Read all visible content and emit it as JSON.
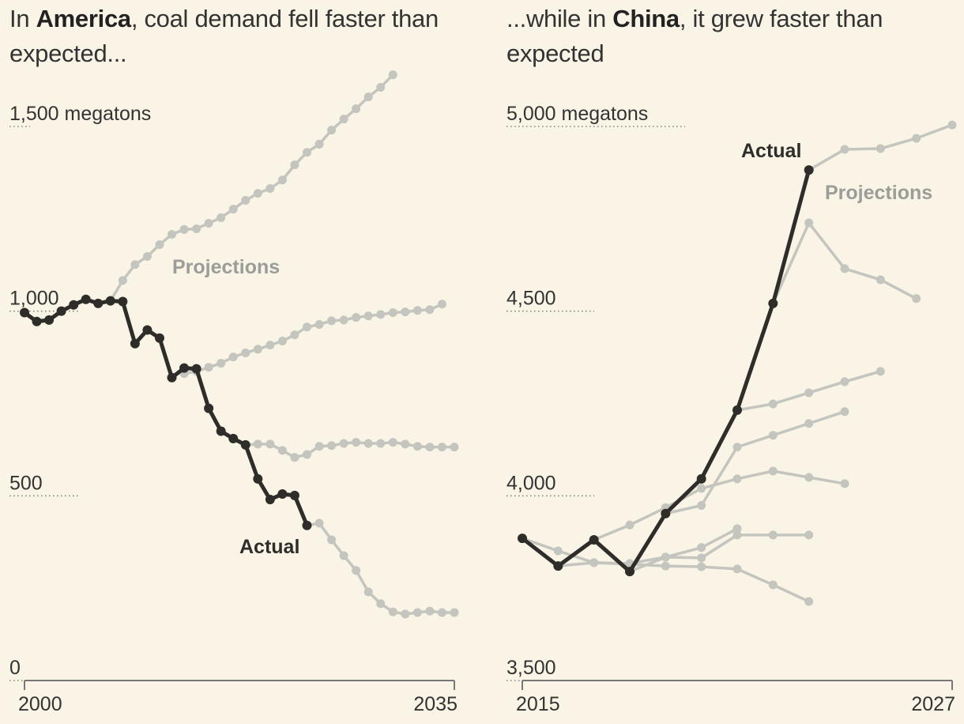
{
  "chart_data": [
    {
      "type": "line",
      "title": {
        "pre": "In ",
        "bold": "America",
        "post": ", coal demand fell faster than expected..."
      },
      "unit": "megatons",
      "ylim": [
        0,
        1500
      ],
      "yticks": [
        {
          "value": 0,
          "label": "0"
        },
        {
          "value": 500,
          "label": "500"
        },
        {
          "value": 1000,
          "label": "1,000"
        },
        {
          "value": 1500,
          "label": "1,500 megatons"
        }
      ],
      "xlim": [
        2000,
        2035
      ],
      "xticks": [
        {
          "value": 2000,
          "label": "2000"
        },
        {
          "value": 2035,
          "label": "2035"
        }
      ],
      "annotations": {
        "actual": "Actual",
        "projections": "Projections"
      },
      "actual": {
        "name": "Actual",
        "x": [
          2000,
          2001,
          2002,
          2003,
          2004,
          2005,
          2006,
          2007,
          2008,
          2009,
          2010,
          2011,
          2012,
          2013,
          2014,
          2015,
          2016,
          2017,
          2018,
          2019,
          2020,
          2021,
          2022,
          2023
        ],
        "y": [
          996,
          972,
          976,
          1000,
          1017,
          1032,
          1021,
          1028,
          1026,
          912,
          949,
          927,
          820,
          846,
          844,
          737,
          675,
          655,
          638,
          546,
          490,
          505,
          501,
          420
        ]
      },
      "projections": [
        {
          "x": [
            2007,
            2008,
            2009,
            2010,
            2011,
            2012,
            2013,
            2014,
            2015,
            2016,
            2017,
            2018,
            2019,
            2020,
            2021,
            2022,
            2023,
            2024,
            2025,
            2026,
            2027,
            2028,
            2029,
            2030
          ],
          "y": [
            1028,
            1083,
            1126,
            1148,
            1180,
            1208,
            1221,
            1223,
            1238,
            1253,
            1276,
            1300,
            1319,
            1332,
            1355,
            1396,
            1430,
            1452,
            1490,
            1520,
            1548,
            1580,
            1606,
            1640
          ]
        },
        {
          "x": [
            2013,
            2014,
            2015,
            2016,
            2017,
            2018,
            2019,
            2020,
            2021,
            2022,
            2023,
            2024,
            2025,
            2026,
            2027,
            2028,
            2029,
            2030,
            2031,
            2032,
            2033,
            2034
          ],
          "y": [
            831,
            837,
            848,
            859,
            876,
            887,
            897,
            908,
            919,
            936,
            957,
            964,
            974,
            976,
            983,
            987,
            991,
            996,
            998,
            1002,
            1004,
            1019
          ]
        },
        {
          "x": [
            2018,
            2019,
            2020,
            2021,
            2022,
            2023,
            2024,
            2025,
            2026,
            2027,
            2028,
            2029,
            2030,
            2031,
            2032,
            2033,
            2034,
            2035
          ],
          "y": [
            638,
            640,
            640,
            623,
            604,
            612,
            634,
            636,
            642,
            645,
            642,
            642,
            645,
            640,
            634,
            632,
            632,
            632
          ]
        },
        {
          "x": [
            2023,
            2024,
            2025,
            2026,
            2027,
            2028,
            2029,
            2030,
            2031,
            2032,
            2033,
            2034,
            2035
          ],
          "y": [
            420,
            426,
            381,
            338,
            298,
            240,
            208,
            186,
            180,
            184,
            188,
            184,
            184
          ]
        }
      ]
    },
    {
      "type": "line",
      "title": {
        "pre": "...while in ",
        "bold": "China",
        "post": ", it grew faster than expected"
      },
      "unit": "megatons",
      "ylim": [
        3500,
        5000
      ],
      "yticks": [
        {
          "value": 3500,
          "label": "3,500"
        },
        {
          "value": 4000,
          "label": "4,000"
        },
        {
          "value": 4500,
          "label": "4,500"
        },
        {
          "value": 5000,
          "label": "5,000 megatons"
        }
      ],
      "xlim": [
        2015,
        2027
      ],
      "xticks": [
        {
          "value": 2015,
          "label": "2015"
        },
        {
          "value": 2027,
          "label": "2027"
        }
      ],
      "annotations": {
        "actual": "Actual",
        "projections": "Projections"
      },
      "actual": {
        "name": "Actual",
        "x": [
          2015,
          2016,
          2017,
          2018,
          2019,
          2020,
          2021,
          2022,
          2023
        ],
        "y": [
          3885,
          3810,
          3881,
          3795,
          3952,
          4046,
          4232,
          4521,
          4882
        ]
      },
      "projections": [
        {
          "x": [
            2015,
            2016,
            2017,
            2018,
            2019,
            2020,
            2021,
            2022,
            2023
          ],
          "y": [
            3885,
            3851,
            3819,
            3815,
            3810,
            3808,
            3802,
            3759,
            3714
          ]
        },
        {
          "x": [
            2016,
            2017,
            2018,
            2019,
            2020,
            2021
          ],
          "y": [
            3810,
            3819,
            3817,
            3834,
            3860,
            3911
          ]
        },
        {
          "x": [
            2017,
            2018,
            2019,
            2020,
            2021,
            2022,
            2023,
            2024
          ],
          "y": [
            3881,
            3921,
            3968,
            4020,
            4046,
            4067,
            4050,
            4033
          ]
        },
        {
          "x": [
            2018,
            2019,
            2020,
            2021,
            2022,
            2023
          ],
          "y": [
            3795,
            3834,
            3832,
            3894,
            3894,
            3894
          ]
        },
        {
          "x": [
            2019,
            2020,
            2021,
            2022,
            2023,
            2024
          ],
          "y": [
            3952,
            3974,
            4132,
            4164,
            4196,
            4228
          ]
        },
        {
          "x": [
            2021,
            2022,
            2023,
            2024,
            2025
          ],
          "y": [
            4232,
            4249,
            4279,
            4309,
            4337
          ]
        },
        {
          "x": [
            2022,
            2023,
            2024,
            2025,
            2026
          ],
          "y": [
            4521,
            4739,
            4615,
            4585,
            4534
          ]
        },
        {
          "x": [
            2023,
            2024,
            2025,
            2026,
            2027
          ],
          "y": [
            4882,
            4938,
            4940,
            4968,
            5004
          ]
        }
      ]
    }
  ],
  "colors": {
    "background": "#f9f4e5",
    "actual": "#2e2d2a",
    "projection": "#c3c5be",
    "projection_label": "#9a9d98",
    "axis": "#777777",
    "text": "#333333"
  }
}
